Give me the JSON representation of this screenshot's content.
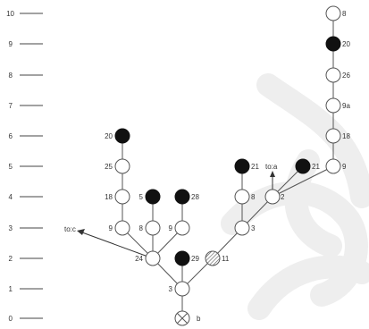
{
  "axis_labels": [
    "0",
    "1",
    "2",
    "3",
    "4",
    "5",
    "6",
    "7",
    "8",
    "9",
    "10"
  ],
  "node_labels": {
    "b": "b",
    "n3": "3",
    "n24": "24",
    "n29": "29",
    "n11": "11",
    "n9a_left": "9",
    "n8_left": "8",
    "n9b_left": "9",
    "n18_left": "18",
    "n5": "5",
    "n28": "28",
    "n25": "25",
    "n20_left": "20",
    "n3_right": "3",
    "n8_right": "8",
    "n2": "2",
    "n21_a": "21",
    "n21_b": "21",
    "n9_col": "9",
    "n18_col": "18",
    "n9a_col": "9a",
    "n26": "26",
    "n20_col": "20",
    "n8_top": "8"
  },
  "arrow_labels": {
    "to_c": "to:c",
    "to_a": "to:a"
  },
  "colors": {
    "stroke": "#555555",
    "filled": "#111111",
    "watermark": "#eeeeee"
  }
}
